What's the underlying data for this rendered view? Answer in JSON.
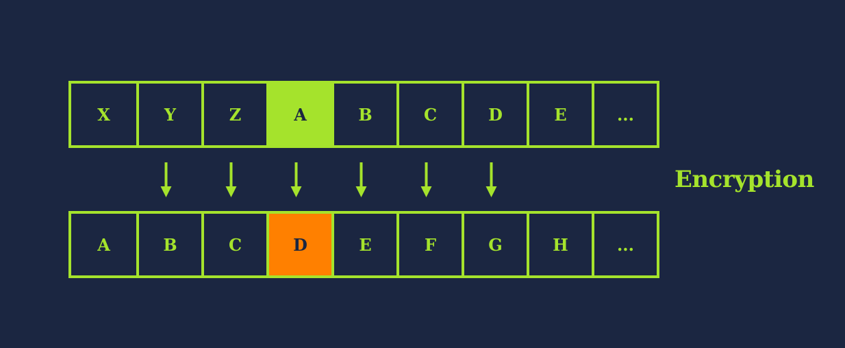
{
  "plain_row": {
    "cells": [
      "X",
      "Y",
      "Z",
      "A",
      "B",
      "C",
      "D",
      "E",
      "..."
    ],
    "highlight_index": 3,
    "highlight_color": "#a5e32c"
  },
  "cipher_row": {
    "cells": [
      "A",
      "B",
      "C",
      "D",
      "E",
      "F",
      "G",
      "H",
      "..."
    ],
    "highlight_index": 3,
    "highlight_color": "#ff8000"
  },
  "arrow_columns": [
    1,
    2,
    3,
    4,
    5,
    6
  ],
  "label": "Encryption",
  "colors": {
    "background": "#1b2641",
    "accent": "#a5e32c",
    "highlight_orange": "#ff8000"
  }
}
